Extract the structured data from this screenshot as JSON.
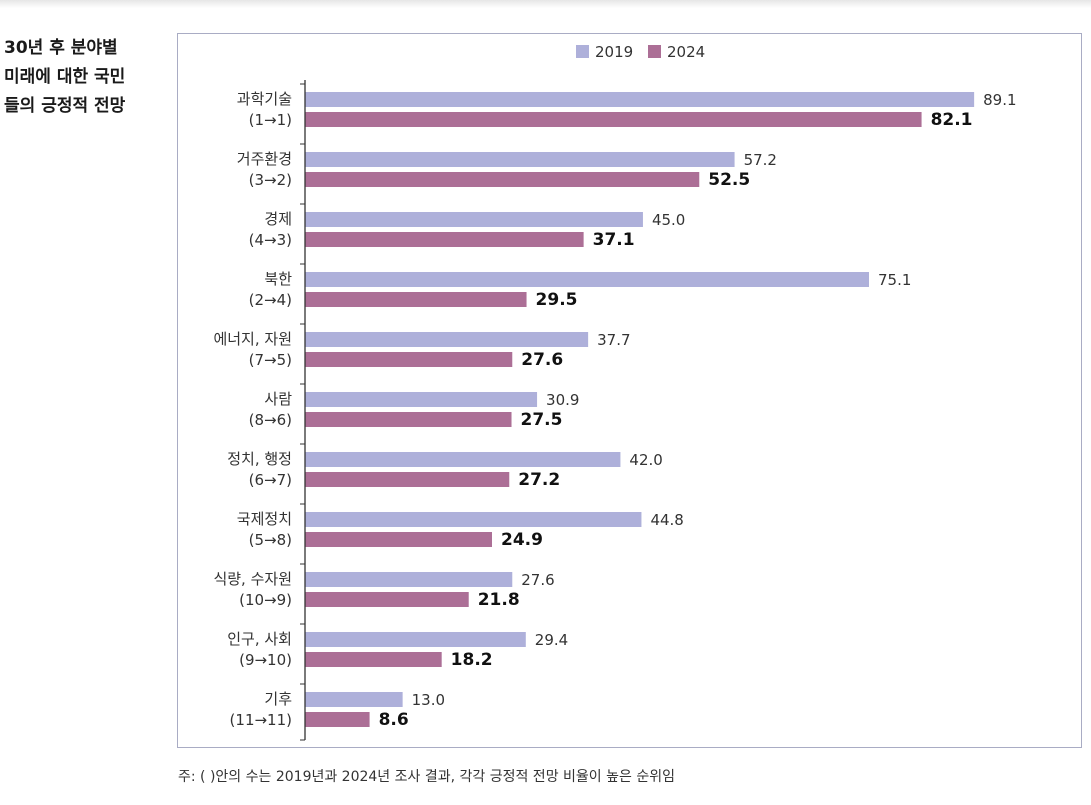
{
  "side_title": [
    "30년 후 분야별",
    "미래에 대한 국민",
    "들의 긍정적 전망"
  ],
  "footnote": "주: ( )안의 수는 2019년과 2024년 조사 결과, 각각 긍정적 전망 비율이 높은 순위임",
  "colors": {
    "2019": "#aeb0da",
    "2024": "#ac6f96",
    "frame": "#a9acc4",
    "axis": "#333333"
  },
  "chart_data": {
    "type": "bar",
    "orientation": "horizontal",
    "legend_position": "top-center",
    "grid": false,
    "xlim": [
      0,
      100
    ],
    "categories": [
      [
        "과학기술",
        "(1→1)"
      ],
      [
        "거주환경",
        "(3→2)"
      ],
      [
        "경제",
        "(4→3)"
      ],
      [
        "북한",
        "(2→4)"
      ],
      [
        "에너지, 자원",
        "(7→5)"
      ],
      [
        "사람",
        "(8→6)"
      ],
      [
        "정치, 행정",
        "(6→7)"
      ],
      [
        "국제정치",
        "(5→8)"
      ],
      [
        "식량, 수자원",
        "(10→9)"
      ],
      [
        "인구, 사회",
        "(9→10)"
      ],
      [
        "기후",
        "(11→11)"
      ]
    ],
    "series": [
      {
        "name": "2019",
        "values": [
          "89.1",
          "57.2",
          "45.0",
          "75.1",
          "37.7",
          "30.9",
          "42.0",
          "44.8",
          "27.6",
          "29.4",
          "13.0"
        ]
      },
      {
        "name": "2024",
        "values": [
          "82.1",
          "52.5",
          "37.1",
          "29.5",
          "27.6",
          "27.5",
          "27.2",
          "24.9",
          "21.8",
          "18.2",
          "8.6"
        ]
      }
    ]
  }
}
